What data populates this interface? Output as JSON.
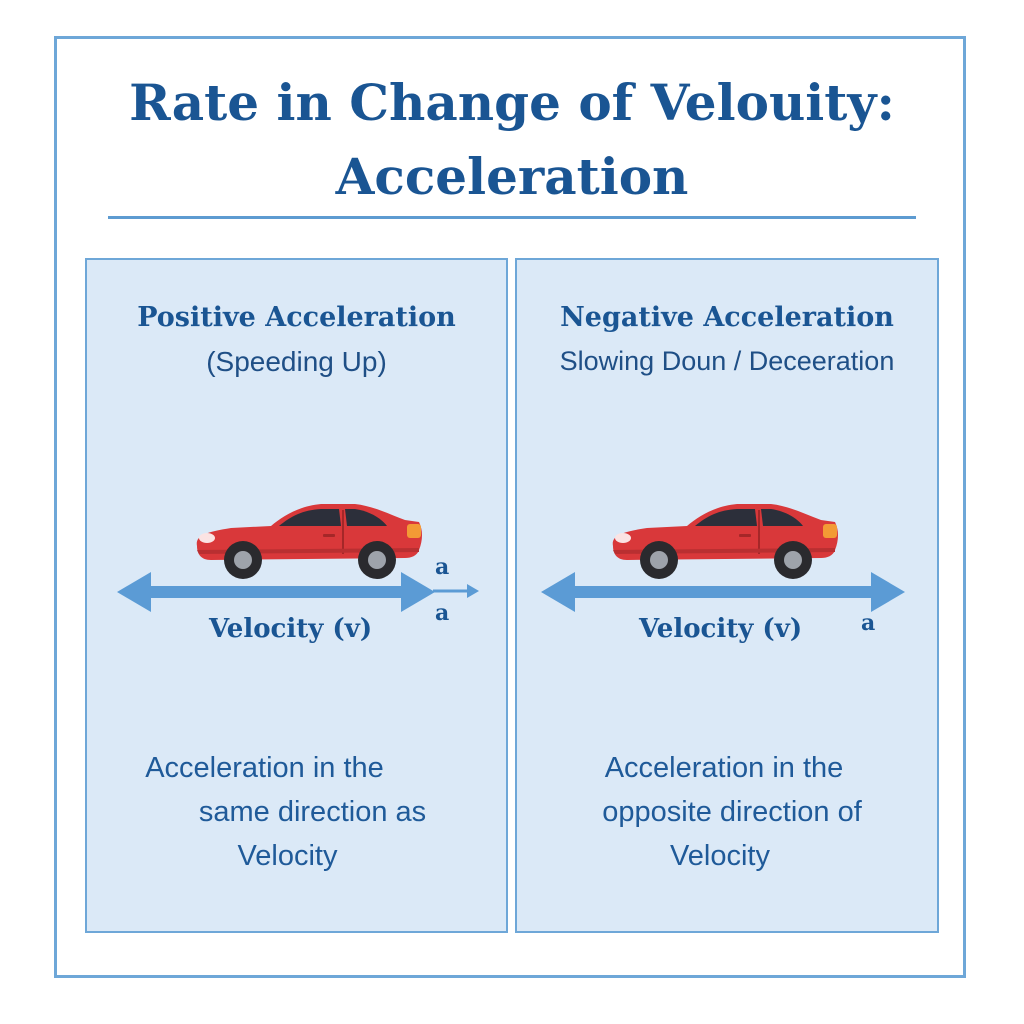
{
  "title": {
    "line1": "Rate in Change of Velouity:",
    "line2": "Acceleration"
  },
  "panels": [
    {
      "heading": "Positive Acceleration",
      "subheading": "(Speeding Up)",
      "velocity_label": "Velocity (v)",
      "accel_labels": [
        "a",
        "a"
      ],
      "description": [
        "Acceleration in the",
        "same direction as",
        "Velocity"
      ]
    },
    {
      "heading": "Negative Acceleration",
      "subheading": "Slowing Doun / Deceeration",
      "velocity_label": "Velocity (v)",
      "accel_labels": [
        "a"
      ],
      "description": [
        "Acceleration in the",
        "opposite direction of",
        "Velocity"
      ]
    }
  ],
  "colors": {
    "title": "#1a5593",
    "panel_bg": "#dbe9f7",
    "border": "#6ea7d8",
    "arrow": "#5b9bd5",
    "car_body": "#d9383a"
  },
  "icons": [
    "car-icon",
    "double-arrow-icon",
    "small-arrow-icon"
  ]
}
